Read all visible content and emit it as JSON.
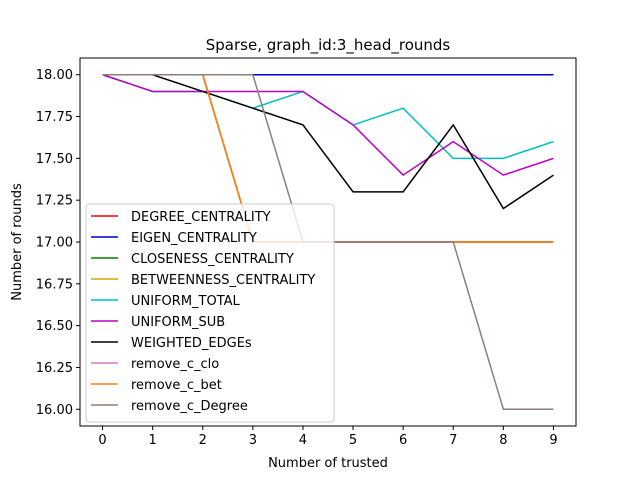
{
  "chart_data": {
    "type": "line",
    "title": "Sparse, graph_id:3_head_rounds",
    "xlabel": "Number of trusted",
    "ylabel": "Number of rounds",
    "x": [
      0,
      1,
      2,
      3,
      4,
      5,
      6,
      7,
      8,
      9
    ],
    "x_ticks": [
      "0",
      "1",
      "2",
      "3",
      "4",
      "5",
      "6",
      "7",
      "8",
      "9"
    ],
    "y_ticks": [
      "16.00",
      "16.25",
      "16.50",
      "16.75",
      "17.00",
      "17.25",
      "17.50",
      "17.75",
      "18.00"
    ],
    "xlim": [
      -0.45,
      9.45
    ],
    "ylim": [
      15.9,
      18.1
    ],
    "grid": false,
    "legend_placement": "lower-left",
    "series": [
      {
        "name": "DEGREE_CENTRALITY",
        "color": "#ff0000",
        "values": [
          18,
          18,
          18,
          17,
          17,
          17,
          17,
          17,
          17,
          17
        ]
      },
      {
        "name": "EIGEN_CENTRALITY",
        "color": "#0000cc",
        "values": [
          18,
          18,
          18,
          18,
          18,
          18,
          18,
          18,
          18,
          18
        ]
      },
      {
        "name": "CLOSENESS_CENTRALITY",
        "color": "#008000",
        "values": [
          18,
          18,
          18,
          17,
          17,
          17,
          17,
          17,
          17,
          17
        ]
      },
      {
        "name": "BETWEENNESS_CENTRALITY",
        "color": "#ccaa00",
        "values": [
          18,
          18,
          18,
          17,
          17,
          17,
          17,
          17,
          17,
          17
        ]
      },
      {
        "name": "UNIFORM_TOTAL",
        "color": "#00bfbf",
        "values": [
          18,
          17.9,
          17.9,
          17.8,
          17.9,
          17.7,
          17.8,
          17.5,
          17.5,
          17.6
        ]
      },
      {
        "name": "UNIFORM_SUB",
        "color": "#bf00bf",
        "values": [
          18,
          17.9,
          17.9,
          17.9,
          17.9,
          17.7,
          17.4,
          17.6,
          17.4,
          17.5
        ]
      },
      {
        "name": "WEIGHTED_EDGEs",
        "color": "#000000",
        "values": [
          18,
          18,
          17.9,
          17.8,
          17.7,
          17.3,
          17.3,
          17.7,
          17.2,
          17.4
        ]
      },
      {
        "name": "remove_c_clo",
        "color": "#e377c2",
        "values": [
          18,
          18,
          18,
          17,
          17,
          17,
          17,
          17,
          17,
          17
        ]
      },
      {
        "name": "remove_c_bet",
        "color": "#ff7f0e",
        "values": [
          18,
          18,
          18,
          17,
          17,
          17,
          17,
          17,
          17,
          17
        ]
      },
      {
        "name": "remove_c_Degree",
        "color": "#8c7f7f",
        "values": [
          18,
          18,
          18,
          18,
          17,
          17,
          17,
          17,
          16,
          16
        ]
      }
    ]
  }
}
